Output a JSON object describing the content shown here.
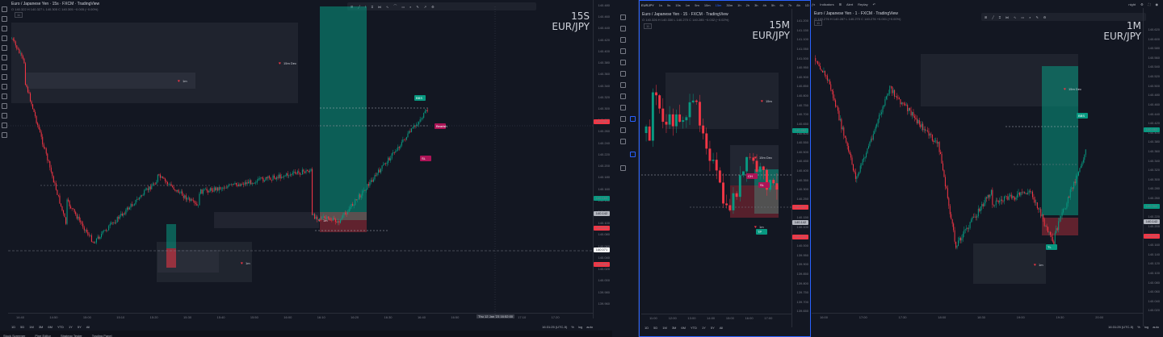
{
  "left_chart": {
    "title": "Euro / Japanese Yen · 15s · FXCM · TradingView",
    "ohlc": "O 140.322 H 140.327 L 140.305 C 140.305 −0.005 (−0.00%)",
    "big_title_tf": "15S",
    "big_title_pair": "EUR/JPY",
    "legend_count": "11",
    "price_axis": [
      "140.480",
      "140.460",
      "140.440",
      "140.420",
      "140.400",
      "140.380",
      "140.360",
      "140.340",
      "140.320",
      "140.300",
      "140.280",
      "140.260",
      "140.240",
      "140.220",
      "140.200",
      "140.180",
      "140.160",
      "140.140",
      "140.120",
      "140.100",
      "140.080",
      "140.060",
      "140.040",
      "140.020",
      "140.000",
      "139.980",
      "139.960"
    ],
    "price_tags": [
      {
        "text": "140.282",
        "color": "#f23645"
      },
      {
        "text": "140.163",
        "color": "#089981"
      },
      {
        "text": "140.142",
        "color": "#b2b5be"
      },
      {
        "text": "140.123",
        "color": "#f23645"
      },
      {
        "text": "140.071",
        "color": "#ffffff"
      },
      {
        "text": "140.069",
        "color": "#f23645"
      }
    ],
    "time_axis": [
      "14:40",
      "14:50",
      "15:00",
      "15:10",
      "15:20",
      "15:30",
      "15:40",
      "15:50",
      "16:00",
      "16:10",
      "16:20",
      "16:30",
      "16:40",
      "16:50",
      "17:00",
      "17:10",
      "17:20"
    ],
    "cursor_time": "Thu 12 Jan '23 16:52:00",
    "zone_labels": [
      "15m Dec",
      "1m",
      "1m",
      "1m"
    ],
    "markers": [
      "BBS",
      "Bearish",
      "SL"
    ],
    "bottom_left": [
      "1D",
      "5D",
      "1M",
      "3M",
      "6M",
      "YTD",
      "1Y",
      "5Y",
      "All"
    ],
    "bottom_right": [
      "16:31:25 (UTC-5)",
      "%",
      "log",
      "auto"
    ],
    "footer": [
      "Stock Screener",
      "Pine Editor",
      "Strategy Tester",
      "Trading Panel"
    ]
  },
  "mid_chart": {
    "header_symbol": "EURJPY",
    "timeframes": [
      "1s",
      "5s",
      "15s",
      "1m",
      "5m",
      "10m",
      "15m",
      "30m",
      "1h",
      "2h",
      "3h",
      "4h",
      "5h",
      "6h",
      "7h",
      "8h",
      "1D"
    ],
    "active_tf": "15m",
    "title": "Euro / Japanese Yen · 15 · FXCM · TradingView",
    "ohlc": "O 140.326 H 140.330 L 140.270 C 140.285 −0.032 (−0.02%)",
    "big_title_tf": "15M",
    "big_title_pair": "EUR/JPY",
    "legend_count": "11",
    "price_axis": [
      "141.200",
      "141.150",
      "141.100",
      "141.050",
      "141.000",
      "140.950",
      "140.900",
      "140.850",
      "140.800",
      "140.750",
      "140.700",
      "140.650",
      "140.600",
      "140.550",
      "140.500",
      "140.450",
      "140.400",
      "140.350",
      "140.300",
      "140.250",
      "140.200",
      "140.150",
      "140.100",
      "140.050",
      "140.000",
      "139.950",
      "139.900",
      "139.850",
      "139.800",
      "139.750",
      "139.700",
      "139.650"
    ],
    "price_tags": [
      {
        "text": "140.462",
        "color": "#089981"
      },
      {
        "text": "140.307",
        "color": "#f23645"
      },
      {
        "text": "140.142",
        "color": "#b2b5be"
      },
      {
        "text": "140.123",
        "color": "#f23645"
      }
    ],
    "time_axis": [
      "11:00",
      "12:00",
      "13:00",
      "14:00",
      "15:00",
      "16:00",
      "17:00"
    ],
    "zone_labels": [
      "15m",
      "15m Dec",
      "1m"
    ],
    "markers": [
      "CH",
      "SL",
      "TP"
    ],
    "bottom_left": [
      "1D",
      "5D",
      "1M",
      "3M",
      "6M",
      "YTD",
      "1Y",
      "5Y",
      "All"
    ]
  },
  "right_chart": {
    "indicators_label": "Indicators",
    "alert_label": "Alert",
    "replay_label": "Replay",
    "layout_label": "night",
    "title": "Euro / Japanese Yen · 1 · FXCM · TradingView",
    "ohlc": "O 140.276 H 140.287 L 140.270 C 140.276 +0.001 (+0.00%)",
    "big_title_tf": "1M",
    "big_title_pair": "EUR/JPY",
    "legend_count": "11",
    "price_axis": [
      "140.620",
      "140.600",
      "140.580",
      "140.560",
      "140.540",
      "140.520",
      "140.500",
      "140.480",
      "140.460",
      "140.440",
      "140.420",
      "140.400",
      "140.380",
      "140.360",
      "140.340",
      "140.320",
      "140.300",
      "140.280",
      "140.260",
      "140.240",
      "140.220",
      "140.200",
      "140.180",
      "140.160",
      "140.140",
      "140.120",
      "140.100",
      "140.080",
      "140.060",
      "140.040",
      "140.020"
    ],
    "price_tags": [
      {
        "text": "140.462",
        "color": "#089981"
      },
      {
        "text": "140.302",
        "color": "#089981"
      },
      {
        "text": "140.142",
        "color": "#b2b5be"
      },
      {
        "text": "140.123",
        "color": "#f23645"
      }
    ],
    "time_axis": [
      "16:00",
      "17:00",
      "17:30",
      "18:00",
      "18:30",
      "19:00",
      "19:30",
      "20:00"
    ],
    "zone_labels": [
      "15m Dec",
      "1m"
    ],
    "markers": [
      "BBS",
      "TL"
    ],
    "bottom_right": [
      "16:31:25 (UTC-5)",
      "%",
      "log",
      "auto"
    ]
  },
  "colors": {
    "bull": "#089981",
    "bear": "#f23645",
    "bg": "#131722",
    "zone": "#2a2e39",
    "accent": "#2962ff"
  }
}
